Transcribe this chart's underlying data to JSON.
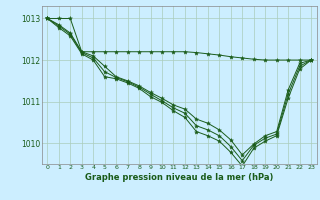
{
  "background_color": "#cceeff",
  "plot_bg_color": "#cceeff",
  "grid_color": "#aaccbb",
  "line_color": "#1a5c1a",
  "marker_color": "#1a5c1a",
  "title": "Graphe pression niveau de la mer (hPa)",
  "xlim": [
    -0.5,
    23.5
  ],
  "ylim": [
    1009.5,
    1013.3
  ],
  "yticks": [
    1010,
    1011,
    1012,
    1013
  ],
  "xticks": [
    0,
    1,
    2,
    3,
    4,
    5,
    6,
    7,
    8,
    9,
    10,
    11,
    12,
    13,
    14,
    15,
    16,
    17,
    18,
    19,
    20,
    21,
    22,
    23
  ],
  "series": [
    [
      1013.0,
      1012.85,
      1012.65,
      1012.2,
      1012.1,
      1011.85,
      1011.6,
      1011.5,
      1011.38,
      1011.22,
      1011.08,
      1010.92,
      1010.82,
      1010.58,
      1010.48,
      1010.32,
      1010.08,
      1009.72,
      1009.98,
      1010.18,
      1010.28,
      1011.28,
      1011.92,
      1012.0
    ],
    [
      1013.0,
      1012.82,
      1012.62,
      1012.18,
      1012.05,
      1011.72,
      1011.58,
      1011.48,
      1011.35,
      1011.18,
      1011.02,
      1010.85,
      1010.72,
      1010.42,
      1010.32,
      1010.18,
      1009.92,
      1009.58,
      1009.95,
      1010.12,
      1010.22,
      1011.18,
      1011.85,
      1012.0
    ],
    [
      1013.0,
      1012.78,
      1012.58,
      1012.15,
      1012.0,
      1011.6,
      1011.55,
      1011.45,
      1011.32,
      1011.12,
      1010.98,
      1010.78,
      1010.62,
      1010.28,
      1010.18,
      1010.05,
      1009.78,
      1009.45,
      1009.88,
      1010.05,
      1010.18,
      1011.08,
      1011.78,
      1012.0
    ],
    [
      1013.0,
      1013.0,
      1013.0,
      1012.2,
      1012.2,
      1012.2,
      1012.2,
      1012.2,
      1012.2,
      1012.2,
      1012.2,
      1012.2,
      1012.2,
      1012.18,
      1012.15,
      1012.12,
      1012.08,
      1012.05,
      1012.02,
      1012.0,
      1012.0,
      1012.0,
      1012.0,
      1012.0
    ]
  ]
}
